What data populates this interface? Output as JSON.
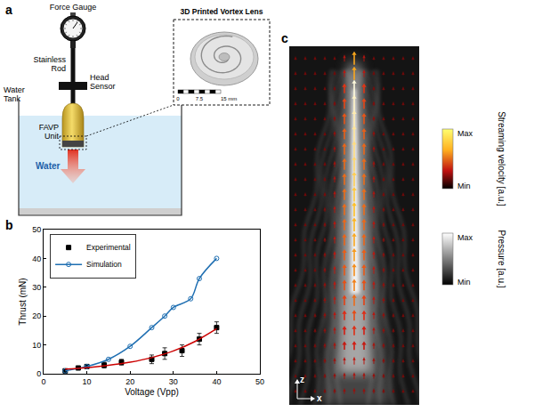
{
  "panel_a": {
    "letter": "a",
    "labels": {
      "force_gauge": "Force Gauge",
      "rod": "Stainless Rod",
      "head_sensor": "Head Sensor",
      "tank": "Water Tank",
      "unit": "FAVP Unit",
      "water": "Water",
      "inset_title": "3D Printed Vortex Lens"
    },
    "scale_bar": [
      "0",
      "7.5",
      "15 mm"
    ]
  },
  "chart_data": {
    "panel_label": "b",
    "type": "scatter",
    "x_label": "Voltage (Vpp)",
    "y_label": "Thrust (mN)",
    "xlim": [
      0,
      50
    ],
    "ylim": [
      0,
      50
    ],
    "xticks": [
      0,
      10,
      20,
      30,
      40,
      50
    ],
    "yticks": [
      0,
      10,
      20,
      30,
      40,
      50
    ],
    "grid": false,
    "legend": "top-left",
    "series": [
      {
        "name": "Experimental",
        "color": "#000000",
        "marker": "square",
        "line_style": "none",
        "x": [
          5,
          8,
          10,
          14,
          18,
          25,
          28,
          32,
          36,
          40
        ],
        "values": [
          1,
          2,
          2.5,
          3,
          4,
          5,
          7,
          8,
          12,
          16
        ],
        "errors": [
          0.5,
          0.5,
          0.5,
          1,
          1,
          1.5,
          2,
          2,
          2,
          2
        ]
      },
      {
        "name": "Simulation",
        "color": "#1f6fb2",
        "marker": "circle-open",
        "line_style": "solid",
        "x": [
          5,
          10,
          15,
          20,
          25,
          28,
          30,
          34,
          36,
          40
        ],
        "values": [
          1,
          2.5,
          5,
          9.5,
          16,
          20,
          23,
          26,
          33,
          40
        ]
      },
      {
        "color": "#cc0000",
        "marker": "none",
        "line_style": "solid",
        "x": [
          5,
          10,
          15,
          20,
          25,
          30,
          35,
          40
        ],
        "values": [
          1.6,
          2.1,
          2.9,
          4,
          5.6,
          7.9,
          11.2,
          15.6
        ]
      }
    ]
  },
  "panel_c": {
    "letter": "c",
    "axis_labels": {
      "vertical": "z",
      "horizontal": "x"
    },
    "colorbars": [
      {
        "title": "Streaming velocity [a.u.]",
        "max": "Max",
        "min": "Min"
      },
      {
        "title": "Pressure [a.u.]",
        "max": "Max",
        "min": "Min"
      }
    ]
  }
}
